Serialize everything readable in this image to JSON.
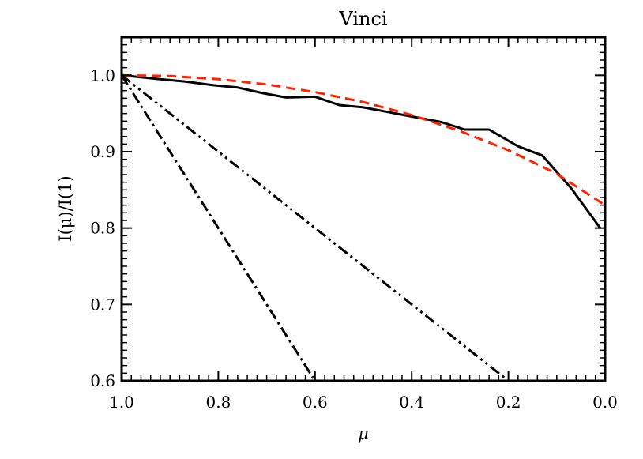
{
  "chart_data": {
    "type": "line",
    "title": "Vinci",
    "xlabel": "μ",
    "ylabel": "I(μ)/I(1)",
    "xlim": [
      1.0,
      0.0
    ],
    "ylim": [
      0.6,
      1.05
    ],
    "x_reversed": true,
    "grid": false,
    "x_ticks": [
      {
        "value": 1.0,
        "label": "1.0"
      },
      {
        "value": 0.8,
        "label": "0.8"
      },
      {
        "value": 0.6,
        "label": "0.6"
      },
      {
        "value": 0.4,
        "label": "0.4"
      },
      {
        "value": 0.2,
        "label": "0.2"
      },
      {
        "value": 0.0,
        "label": "0.0"
      }
    ],
    "y_ticks": [
      {
        "value": 0.6,
        "label": "0.6"
      },
      {
        "value": 0.7,
        "label": "0.7"
      },
      {
        "value": 0.8,
        "label": "0.8"
      },
      {
        "value": 0.9,
        "label": "0.9"
      },
      {
        "value": 1.0,
        "label": "1.0"
      }
    ],
    "series": [
      {
        "style": "solid",
        "color": "#000000",
        "x": [
          1.0,
          0.92,
          0.87,
          0.81,
          0.76,
          0.71,
          0.66,
          0.6,
          0.55,
          0.5,
          0.45,
          0.4,
          0.34,
          0.29,
          0.24,
          0.18,
          0.13,
          0.07,
          0.01
        ],
        "y": [
          1.0,
          0.995,
          0.992,
          0.987,
          0.984,
          0.977,
          0.971,
          0.972,
          0.961,
          0.958,
          0.952,
          0.946,
          0.939,
          0.929,
          0.929,
          0.907,
          0.895,
          0.852,
          0.8
        ]
      },
      {
        "style": "dashed",
        "color": "#ff2200",
        "x": [
          1.0,
          0.9,
          0.8,
          0.7,
          0.6,
          0.5,
          0.4,
          0.3,
          0.2,
          0.1,
          0.0
        ],
        "y": [
          1.0,
          0.999,
          0.995,
          0.988,
          0.978,
          0.965,
          0.948,
          0.927,
          0.902,
          0.871,
          0.83
        ]
      },
      {
        "style": "dash-dot",
        "color": "#000000",
        "x": [
          1.0,
          0.59
        ],
        "y": [
          1.0,
          0.59
        ]
      },
      {
        "style": "dash-dot-dot",
        "color": "#000000",
        "x": [
          1.0,
          0.19
        ],
        "y": [
          1.0,
          0.595
        ]
      }
    ]
  }
}
